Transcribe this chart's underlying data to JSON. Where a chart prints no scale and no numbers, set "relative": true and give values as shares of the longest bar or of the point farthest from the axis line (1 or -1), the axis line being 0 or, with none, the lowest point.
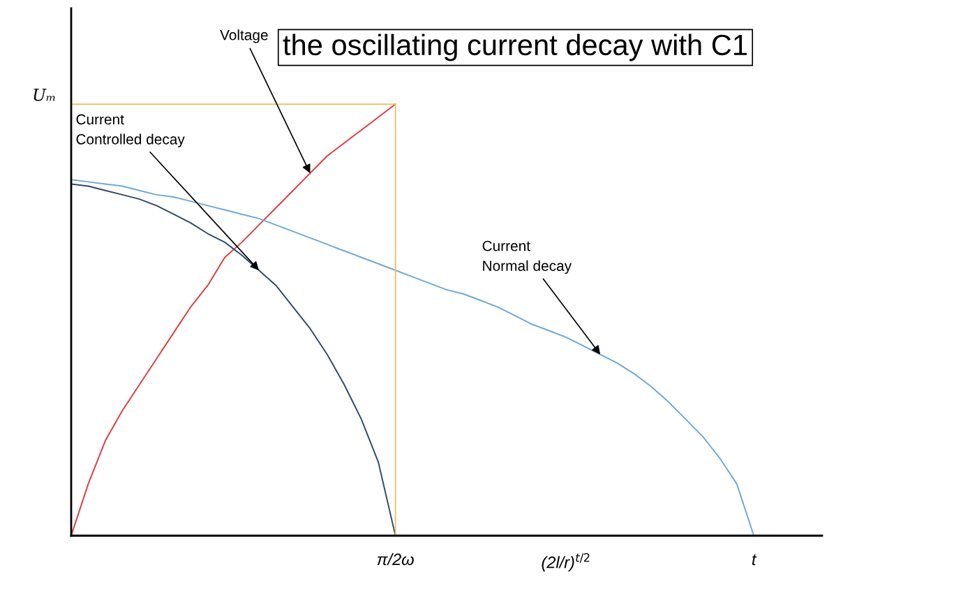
{
  "chart_data": {
    "type": "line",
    "title": "the oscillating current decay with C1",
    "relative": true,
    "grid": false,
    "legend": false,
    "categories": [
      null,
      null,
      null,
      null,
      null,
      null,
      null,
      null,
      null,
      null,
      null,
      null,
      null,
      null,
      null,
      null,
      null,
      null,
      null,
      "π/2ω",
      null,
      null,
      null,
      null,
      null,
      null,
      null,
      null,
      null,
      "(2l/r)$^{t/2}$",
      null,
      null,
      null,
      null,
      null,
      null,
      null,
      null,
      null,
      null,
      "t",
      null,
      null,
      null,
      null
    ],
    "annotations": [
      "Uₘ"
    ],
    "series": [
      {
        "name": "Voltage",
        "color": "#e03c3c",
        "values": [
          0,
          0.12,
          0.22,
          0.29,
          0.35,
          0.41,
          0.47,
          0.53,
          0.58,
          0.645,
          0.68,
          0.72,
          0.76,
          0.8,
          0.84,
          0.88,
          0.91,
          0.94,
          0.97,
          1.0,
          null,
          null,
          null,
          null,
          null,
          null,
          null,
          null,
          null,
          null,
          null,
          null,
          null,
          null,
          null,
          null,
          null,
          null,
          null,
          null,
          null,
          null,
          null,
          null,
          null
        ]
      },
      {
        "name": "Current\nControlled decay",
        "color": "#2e4a6b",
        "values": [
          0.815,
          0.81,
          0.8,
          0.79,
          0.78,
          0.765,
          0.745,
          0.725,
          0.7,
          0.68,
          0.65,
          0.615,
          0.58,
          0.53,
          0.48,
          0.42,
          0.35,
          0.27,
          0.17,
          0,
          null,
          null,
          null,
          null,
          null,
          null,
          null,
          null,
          null,
          null,
          null,
          null,
          null,
          null,
          null,
          null,
          null,
          null,
          null,
          null,
          null,
          null,
          null,
          null,
          null
        ]
      },
      {
        "name": "Current\nNormal decay",
        "color": "#6fa8d6",
        "values": [
          0.825,
          0.82,
          0.815,
          0.81,
          0.8,
          0.79,
          0.785,
          0.775,
          0.765,
          0.755,
          0.745,
          0.735,
          0.72,
          0.705,
          0.69,
          0.675,
          0.66,
          0.645,
          0.63,
          0.615,
          0.6,
          0.585,
          0.57,
          0.56,
          0.545,
          0.53,
          0.51,
          0.49,
          0.475,
          0.46,
          0.44,
          0.42,
          0.4,
          0.375,
          0.345,
          0.31,
          0.27,
          0.23,
          0.18,
          0.12,
          0,
          null,
          null,
          null,
          null
        ]
      },
      {
        "type": "step",
        "color": "#e8c46a",
        "values": [
          1,
          1,
          1,
          1,
          1,
          1,
          1,
          1,
          1,
          1,
          1,
          1,
          1,
          1,
          1,
          1,
          1,
          1,
          1,
          1,
          0,
          null,
          null,
          null,
          null,
          null,
          null,
          null,
          null,
          null,
          null,
          null,
          null,
          null,
          null,
          null,
          null,
          null,
          null,
          null,
          null,
          null,
          null,
          null,
          null
        ]
      }
    ]
  }
}
